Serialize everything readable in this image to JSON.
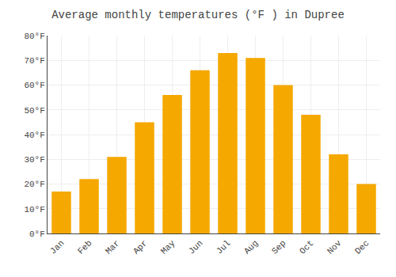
{
  "chart_data": {
    "type": "bar",
    "title": "Average monthly temperatures (°F ) in Dupree",
    "categories": [
      "Jan",
      "Feb",
      "Mar",
      "Apr",
      "May",
      "Jun",
      "Jul",
      "Aug",
      "Sep",
      "Oct",
      "Nov",
      "Dec"
    ],
    "values": [
      17,
      22,
      31,
      45,
      56,
      66,
      73,
      71,
      60,
      48,
      32,
      20
    ],
    "color": "#F5A800",
    "ylim": [
      0,
      80
    ],
    "yticks": [
      {
        "value": 0,
        "label": "0°F"
      },
      {
        "value": 10,
        "label": "10°F"
      },
      {
        "value": 20,
        "label": "20°F"
      },
      {
        "value": 30,
        "label": "30°F"
      },
      {
        "value": 40,
        "label": "40°F"
      },
      {
        "value": 50,
        "label": "50°F"
      },
      {
        "value": 60,
        "label": "60°F"
      },
      {
        "value": 70,
        "label": "70°F"
      },
      {
        "value": 80,
        "label": "80°F"
      }
    ],
    "grid": true
  }
}
